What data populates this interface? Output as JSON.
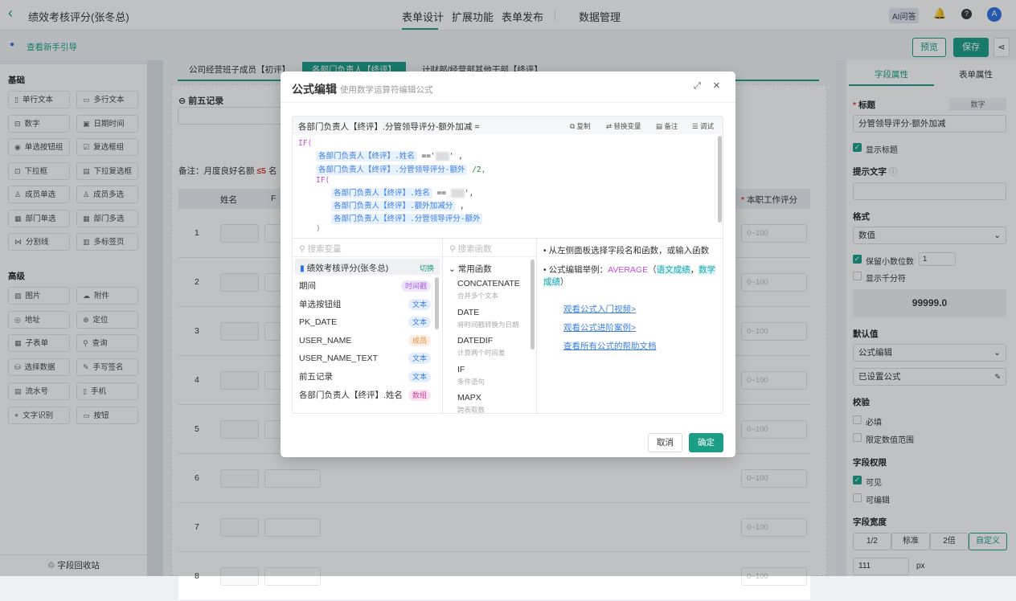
{
  "header": {
    "title": "绩效考核评分(张冬总)",
    "tabs": [
      "表单设计",
      "扩展功能",
      "表单发布",
      "数据管理"
    ],
    "ai_label": "AI问答",
    "avatar": "A"
  },
  "subbar": {
    "guide": "查看新手引导",
    "preview": "预览",
    "save": "保存"
  },
  "sidebar": {
    "basic_title": "基础",
    "basic": [
      "单行文本",
      "多行文本",
      "数字",
      "日期时间",
      "单选按钮组",
      "复选框组",
      "下拉框",
      "下拉复选框",
      "成员单选",
      "成员多选",
      "部门单选",
      "部门多选",
      "分割线",
      "多标签页"
    ],
    "advanced_title": "高级",
    "advanced": [
      "图片",
      "附件",
      "地址",
      "定位",
      "子表单",
      "查询",
      "选择数据",
      "手写签名",
      "流水号",
      "手机",
      "文字识别",
      "按钮"
    ],
    "recycle": "字段回收站"
  },
  "canvas": {
    "tabs": [
      "公司经营班子成员【初评】",
      "各部门负责人【终评】",
      "计财部/经营部其他干部【终评】"
    ],
    "field_title": "前五记录",
    "note_prefix": "备注：月度良好名额",
    "note_limit": "≤5",
    "note_suffix": "名",
    "table": {
      "headers": [
        "姓名",
        "F",
        "本职工作评分"
      ],
      "rows": [
        "1",
        "2",
        "3",
        "4",
        "5",
        "6",
        "7",
        "8"
      ],
      "placeholder": "0~100"
    }
  },
  "modal": {
    "title": "公式编辑",
    "subtitle": "使用数学运算符编辑公式",
    "formula_label": "各部门负责人【终评】.分管领导评分-额外加减 =",
    "toolbar": [
      "复制",
      "替换变量",
      "备注",
      "调试"
    ],
    "code": {
      "if": "IF(",
      "f_name": "各部门负责人【终评】.姓名",
      "eq": "==",
      "f_extra": "各部门负责人【终评】.分管领导评分-额外",
      "div": "/2,",
      "f_add": "各部门负责人【终评】.额外加减分",
      "comma": ",",
      "close": ")"
    },
    "var_search": "搜索变量",
    "func_search": "搜索函数",
    "form_name": "绩效考核评分(张冬总)",
    "switch": "切换",
    "vars": [
      {
        "name": "期间",
        "tag": "时间戳",
        "color": "#a25fe0",
        "bg": "#f0e6fc"
      },
      {
        "name": "单选按钮组",
        "tag": "文本",
        "color": "#3b7de0",
        "bg": "#e3eefd"
      },
      {
        "name": "PK_DATE",
        "tag": "文本",
        "color": "#3b7de0",
        "bg": "#e3eefd"
      },
      {
        "name": "USER_NAME",
        "tag": "成员",
        "color": "#f08a3c",
        "bg": "#fdeee2"
      },
      {
        "name": "USER_NAME_TEXT",
        "tag": "文本",
        "color": "#3b7de0",
        "bg": "#e3eefd"
      },
      {
        "name": "前五记录",
        "tag": "文本",
        "color": "#3b7de0",
        "bg": "#e3eefd"
      },
      {
        "name": "各部门负责人【终评】.姓名",
        "tag": "数组",
        "color": "#d0409f",
        "bg": "#fbe3f2"
      }
    ],
    "func_group": "常用函数",
    "funcs": [
      {
        "name": "CONCATENATE",
        "desc": "合并多个文本"
      },
      {
        "name": "DATE",
        "desc": "将时间戳转换为日期"
      },
      {
        "name": "DATEDIF",
        "desc": "计算两个时间差"
      },
      {
        "name": "IF",
        "desc": "条件语句"
      },
      {
        "name": "MAPX",
        "desc": "跨表取数"
      }
    ],
    "help": {
      "tip1": "从左侧面板选择字段名和函数，或输入函数",
      "tip2_prefix": "公式编辑举例：",
      "tip2_fn": "AVERAGE",
      "tip2_a": "语文成绩",
      "tip2_b": "数学成绩",
      "links": [
        "观看公式入门视频>",
        "观看公式进阶案例>",
        "查看所有公式的帮助文档"
      ]
    },
    "cancel": "取消",
    "ok": "确定"
  },
  "panel": {
    "tabs": [
      "字段属性",
      "表单属性"
    ],
    "title_label": "标题",
    "type_badge": "数字",
    "title_value": "分管领导评分-额外加减",
    "show_title": "显示标题",
    "hint_label": "提示文字",
    "format_label": "格式",
    "format_value": "数值",
    "decimals_label": "保留小数位数",
    "decimals": "1",
    "thousands": "显示千分符",
    "preview": "99999.0",
    "default_label": "默认值",
    "default_value": "公式编辑",
    "formula_set": "已设置公式",
    "validate_label": "校验",
    "required": "必填",
    "range": "限定数值范围",
    "perm_label": "字段权限",
    "visible": "可见",
    "editable": "可编辑",
    "width_label": "字段宽度",
    "widths": [
      "1/2",
      "标准",
      "2倍",
      "自定义"
    ],
    "width_value": "111",
    "unit": "px"
  },
  "colors": {
    "accent": "#1a9e86",
    "link": "#3b7de0"
  }
}
